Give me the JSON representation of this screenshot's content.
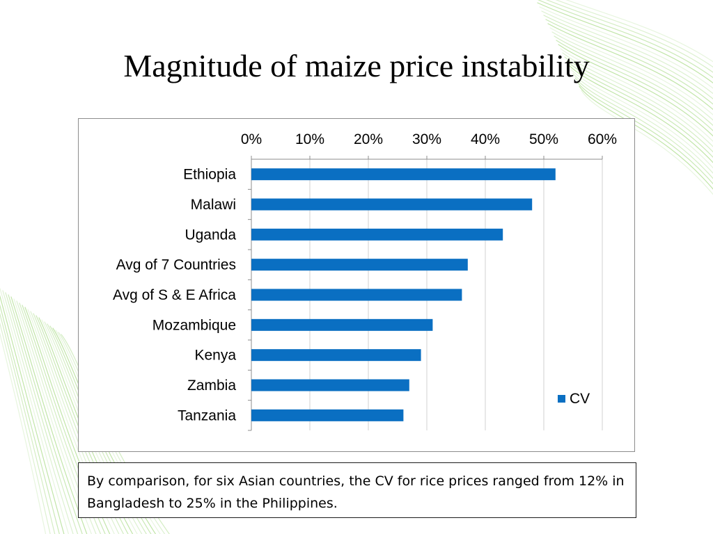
{
  "slide": {
    "title": "Magnitude of maize price instability",
    "note": "By comparison, for six Asian countries, the CV for rice prices ranged from 12% in Bangladesh to 25% in the Philippines."
  },
  "colors": {
    "bar": "#0a6fc2",
    "decor_green": "#9fd77a"
  },
  "chart_data": {
    "type": "bar",
    "orientation": "horizontal",
    "categories": [
      "Ethiopia",
      "Malawi",
      "Uganda",
      "Avg of 7 Countries",
      "Avg of S & E Africa",
      "Mozambique",
      "Kenya",
      "Zambia",
      "Tanzania"
    ],
    "series": [
      {
        "name": "CV",
        "values": [
          0.52,
          0.48,
          0.43,
          0.37,
          0.36,
          0.31,
          0.29,
          0.27,
          0.26
        ]
      }
    ],
    "xlim": [
      0,
      0.6
    ],
    "x_ticks": [
      0,
      0.1,
      0.2,
      0.3,
      0.4,
      0.5,
      0.6
    ],
    "x_tick_labels": [
      "0%",
      "10%",
      "20%",
      "30%",
      "40%",
      "50%",
      "60%"
    ],
    "x_axis_position": "top",
    "grid": true,
    "legend": "right"
  }
}
